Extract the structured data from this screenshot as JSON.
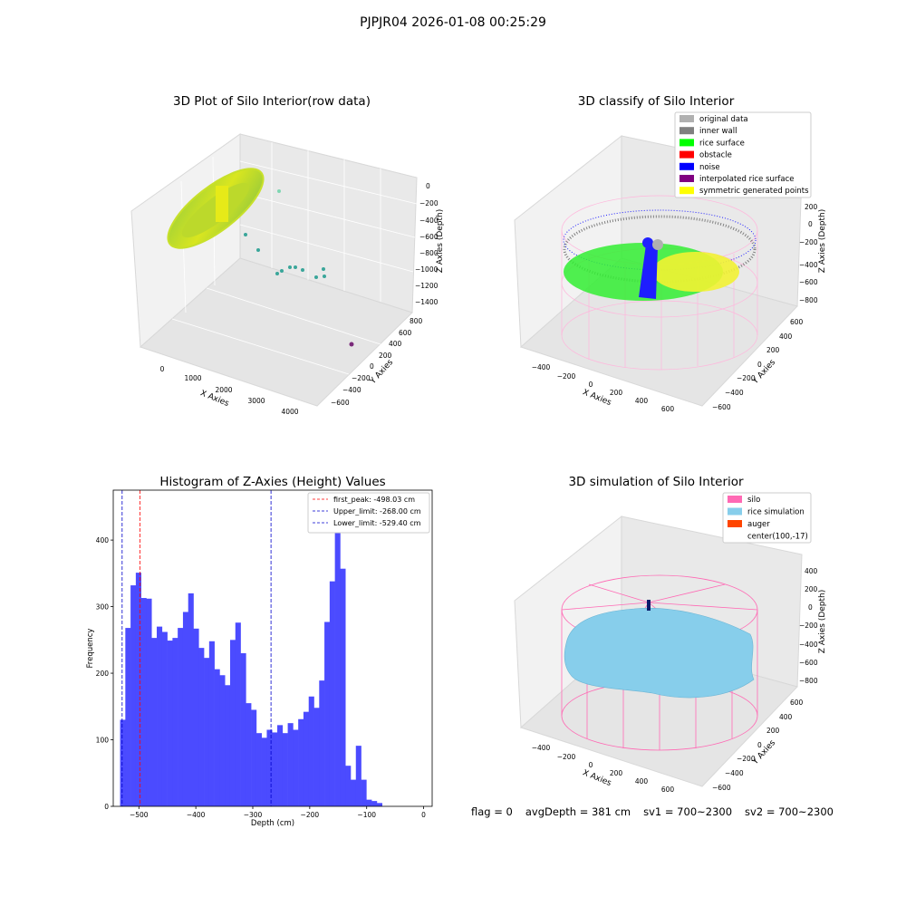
{
  "figure": {
    "suptitle": "PJPJR04 2026-01-08 00:25:29"
  },
  "panels": {
    "raw": {
      "title": "3D Plot of Silo Interior(row data)",
      "xlabel": "X Axies",
      "ylabel": "Y Axies",
      "zlabel": "Z Axies (Depth)",
      "xticks": [
        "0",
        "1000",
        "2000",
        "3000",
        "4000"
      ],
      "yticks": [
        "800",
        "600",
        "400",
        "200",
        "0",
        "−200",
        "−400",
        "−600"
      ],
      "zticks": [
        "0",
        "−200",
        "−400",
        "−600",
        "−800",
        "−1000",
        "−1200",
        "−1400"
      ]
    },
    "classify": {
      "title": "3D classify of Silo Interior",
      "xlabel": "X Axies",
      "ylabel": "Y Axies",
      "zlabel": "Z Axies (Depth)",
      "xticks": [
        "−400",
        "−200",
        "0",
        "200",
        "400",
        "600"
      ],
      "yticks": [
        "600",
        "400",
        "200",
        "0",
        "−200",
        "−400",
        "−600"
      ],
      "zticks": [
        "200",
        "0",
        "−200",
        "−400",
        "−600",
        "−800"
      ],
      "legend": [
        {
          "label": "original data",
          "color": "#b0b0b0"
        },
        {
          "label": "inner wall",
          "color": "#808080"
        },
        {
          "label": "rice surface",
          "color": "#00ff00"
        },
        {
          "label": "obstacle",
          "color": "#ff0000"
        },
        {
          "label": "noise",
          "color": "#0000ff"
        },
        {
          "label": "interpolated rice surface",
          "color": "#800080"
        },
        {
          "label": "symmetric generated points",
          "color": "#ffff00"
        }
      ]
    },
    "simulation": {
      "title": "3D simulation of Silo Interior",
      "xlabel": "X Axies",
      "ylabel": "Y Axies",
      "zlabel": "Z Axies (Depth)",
      "xticks": [
        "−400",
        "−200",
        "0",
        "200",
        "400",
        "600"
      ],
      "yticks": [
        "600",
        "400",
        "200",
        "0",
        "−200",
        "−400",
        "−600"
      ],
      "zticks": [
        "400",
        "200",
        "0",
        "−200",
        "−400",
        "−600",
        "−800"
      ],
      "legend": [
        {
          "label": "silo",
          "color": "#ff69b4"
        },
        {
          "label": "rice simulation",
          "color": "#87ceeb"
        },
        {
          "label": "auger",
          "color": "#ff4500"
        },
        {
          "label": "center(100,-17)",
          "color": ""
        }
      ]
    }
  },
  "footer": {
    "flag": "flag = 0",
    "avg_depth": "avgDepth = 381 cm",
    "sv1": "sv1 = 700~2300",
    "sv2": "sv2 = 700~2300"
  },
  "chart_data": [
    {
      "type": "histogram",
      "title": "Histogram of Z-Axies (Height) Values",
      "xlabel": "Depth (cm)",
      "ylabel": "Frequency",
      "xlim": [
        -545,
        15
      ],
      "ylim": [
        0,
        475
      ],
      "xticks": [
        -500,
        -400,
        -300,
        -200,
        -100,
        0
      ],
      "yticks": [
        0,
        100,
        200,
        300,
        400
      ],
      "bin_start": -533,
      "bin_width": 9.2,
      "bar_color": "#4b4bff",
      "counts": [
        130,
        268,
        332,
        351,
        313,
        312,
        253,
        270,
        262,
        249,
        253,
        268,
        292,
        320,
        267,
        238,
        223,
        248,
        206,
        197,
        182,
        250,
        276,
        230,
        155,
        145,
        110,
        103,
        115,
        111,
        122,
        110,
        125,
        115,
        131,
        142,
        165,
        148,
        189,
        277,
        338,
        453,
        357,
        61,
        40,
        91,
        40,
        10,
        8,
        5
      ],
      "lines": [
        {
          "label": "first_peak: -498.03 cm",
          "x": -498.03,
          "color": "#ff0000"
        },
        {
          "label": "Upper_limit: -268.00 cm",
          "x": -268.0,
          "color": "#0000cc"
        },
        {
          "label": "Lower_limit: -529.40 cm",
          "x": -529.4,
          "color": "#0000cc"
        }
      ]
    }
  ]
}
